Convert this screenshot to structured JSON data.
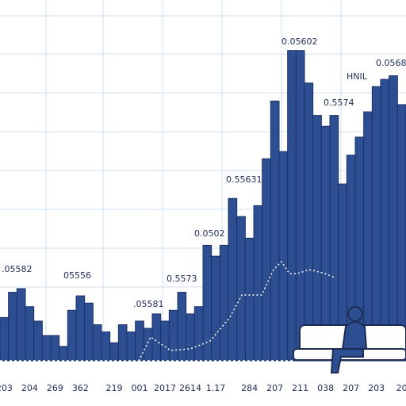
{
  "chart_data": {
    "type": "bar",
    "color": "#2d4f91",
    "categories": [
      "203",
      null,
      null,
      "204",
      null,
      null,
      "269",
      null,
      null,
      "362",
      null,
      null,
      null,
      "219",
      null,
      null,
      "001",
      null,
      null,
      "2017",
      null,
      null,
      "2614",
      null,
      null,
      "1.17",
      null,
      null,
      null,
      "284",
      null,
      null,
      "207",
      null,
      null,
      "211",
      null,
      null,
      "038",
      null,
      null,
      "207",
      null,
      null,
      "203",
      null,
      null,
      "20"
    ],
    "values": [
      12,
      19,
      20,
      15,
      11,
      7,
      7,
      4,
      14,
      18,
      16,
      10,
      8,
      5,
      10,
      8,
      11,
      9,
      13,
      11,
      14,
      19,
      13,
      15,
      32,
      29,
      32,
      45,
      40,
      34,
      43,
      56,
      72,
      58,
      86,
      86,
      77,
      68,
      65,
      68,
      49,
      57,
      62,
      69,
      76,
      78,
      79,
      71
    ],
    "ylim": [
      0,
      100
    ],
    "annotations": [
      ".05582",
      "05556",
      ".05581",
      "0.5573",
      "0.0502",
      "0.55631",
      "0.05602",
      "0.5574",
      "HNIL",
      "0.0568"
    ]
  }
}
